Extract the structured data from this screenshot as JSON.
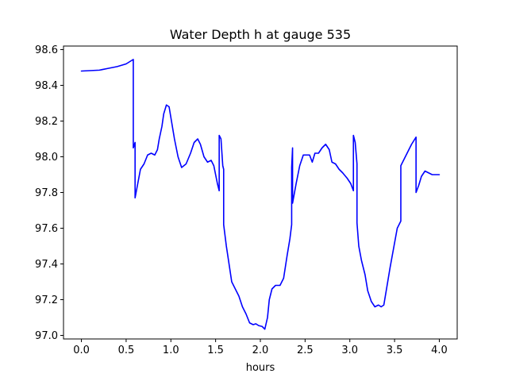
{
  "chart_data": {
    "type": "line",
    "title": "Water Depth h at gauge 535",
    "xlabel": "hours",
    "ylabel": "",
    "xlim": [
      -0.2,
      4.2
    ],
    "ylim": [
      96.98,
      98.62
    ],
    "xticks": [
      0.0,
      0.5,
      1.0,
      1.5,
      2.0,
      2.5,
      3.0,
      3.5,
      4.0
    ],
    "xtick_labels": [
      "0.0",
      "0.5",
      "1.0",
      "1.5",
      "2.0",
      "2.5",
      "3.0",
      "3.5",
      "4.0"
    ],
    "yticks": [
      97.0,
      97.2,
      97.4,
      97.6,
      97.8,
      98.0,
      98.2,
      98.4,
      98.6
    ],
    "ytick_labels": [
      "97.0",
      "97.2",
      "97.4",
      "97.6",
      "97.8",
      "98.0",
      "98.2",
      "98.4",
      "98.6"
    ],
    "grid": false,
    "legend": "none",
    "series": [
      {
        "color": "#0000ff",
        "points": [
          [
            0.0,
            98.48
          ],
          [
            0.2,
            98.485
          ],
          [
            0.3,
            98.495
          ],
          [
            0.4,
            98.505
          ],
          [
            0.5,
            98.52
          ],
          [
            0.58,
            98.545
          ],
          [
            0.58,
            98.05
          ],
          [
            0.6,
            98.08
          ],
          [
            0.6,
            97.77
          ],
          [
            0.63,
            97.85
          ],
          [
            0.66,
            97.93
          ],
          [
            0.7,
            97.96
          ],
          [
            0.74,
            98.01
          ],
          [
            0.78,
            98.02
          ],
          [
            0.82,
            98.01
          ],
          [
            0.85,
            98.04
          ],
          [
            0.87,
            98.1
          ],
          [
            0.9,
            98.17
          ],
          [
            0.92,
            98.24
          ],
          [
            0.95,
            98.29
          ],
          [
            0.98,
            98.28
          ],
          [
            1.0,
            98.22
          ],
          [
            1.04,
            98.1
          ],
          [
            1.08,
            98.0
          ],
          [
            1.12,
            97.94
          ],
          [
            1.17,
            97.96
          ],
          [
            1.22,
            98.02
          ],
          [
            1.26,
            98.08
          ],
          [
            1.3,
            98.1
          ],
          [
            1.33,
            98.07
          ],
          [
            1.37,
            98.0
          ],
          [
            1.41,
            97.97
          ],
          [
            1.45,
            97.98
          ],
          [
            1.48,
            97.95
          ],
          [
            1.52,
            97.85
          ],
          [
            1.54,
            97.81
          ],
          [
            1.54,
            98.12
          ],
          [
            1.56,
            98.1
          ],
          [
            1.58,
            97.95
          ],
          [
            1.59,
            97.93
          ],
          [
            1.59,
            97.62
          ],
          [
            1.62,
            97.5
          ],
          [
            1.65,
            97.4
          ],
          [
            1.68,
            97.3
          ],
          [
            1.72,
            97.26
          ],
          [
            1.76,
            97.22
          ],
          [
            1.8,
            97.16
          ],
          [
            1.84,
            97.12
          ],
          [
            1.88,
            97.07
          ],
          [
            1.92,
            97.06
          ],
          [
            1.95,
            97.065
          ],
          [
            1.98,
            97.055
          ],
          [
            2.02,
            97.05
          ],
          [
            2.05,
            97.035
          ],
          [
            2.08,
            97.1
          ],
          [
            2.1,
            97.2
          ],
          [
            2.13,
            97.26
          ],
          [
            2.17,
            97.28
          ],
          [
            2.22,
            97.28
          ],
          [
            2.26,
            97.32
          ],
          [
            2.3,
            97.45
          ],
          [
            2.33,
            97.54
          ],
          [
            2.35,
            97.62
          ],
          [
            2.35,
            97.94
          ],
          [
            2.36,
            98.05
          ],
          [
            2.36,
            97.74
          ],
          [
            2.4,
            97.85
          ],
          [
            2.44,
            97.95
          ],
          [
            2.48,
            98.01
          ],
          [
            2.52,
            98.01
          ],
          [
            2.55,
            98.01
          ],
          [
            2.58,
            97.97
          ],
          [
            2.61,
            98.02
          ],
          [
            2.65,
            98.02
          ],
          [
            2.69,
            98.05
          ],
          [
            2.73,
            98.07
          ],
          [
            2.77,
            98.04
          ],
          [
            2.8,
            97.97
          ],
          [
            2.84,
            97.96
          ],
          [
            2.88,
            97.93
          ],
          [
            2.92,
            97.91
          ],
          [
            2.97,
            97.88
          ],
          [
            3.01,
            97.85
          ],
          [
            3.04,
            97.81
          ],
          [
            3.04,
            98.12
          ],
          [
            3.06,
            98.08
          ],
          [
            3.08,
            97.96
          ],
          [
            3.08,
            97.63
          ],
          [
            3.1,
            97.5
          ],
          [
            3.13,
            97.42
          ],
          [
            3.17,
            97.34
          ],
          [
            3.2,
            97.25
          ],
          [
            3.24,
            97.19
          ],
          [
            3.28,
            97.16
          ],
          [
            3.32,
            97.17
          ],
          [
            3.35,
            97.16
          ],
          [
            3.38,
            97.17
          ],
          [
            3.41,
            97.26
          ],
          [
            3.45,
            97.38
          ],
          [
            3.49,
            97.49
          ],
          [
            3.53,
            97.6
          ],
          [
            3.57,
            97.64
          ],
          [
            3.57,
            97.95
          ],
          [
            3.61,
            97.99
          ],
          [
            3.65,
            98.03
          ],
          [
            3.69,
            98.07
          ],
          [
            3.74,
            98.11
          ],
          [
            3.74,
            97.8
          ],
          [
            3.77,
            97.84
          ],
          [
            3.8,
            97.89
          ],
          [
            3.84,
            97.92
          ],
          [
            3.88,
            97.91
          ],
          [
            3.92,
            97.9
          ],
          [
            3.96,
            97.9
          ],
          [
            4.0,
            97.9
          ]
        ]
      }
    ]
  }
}
